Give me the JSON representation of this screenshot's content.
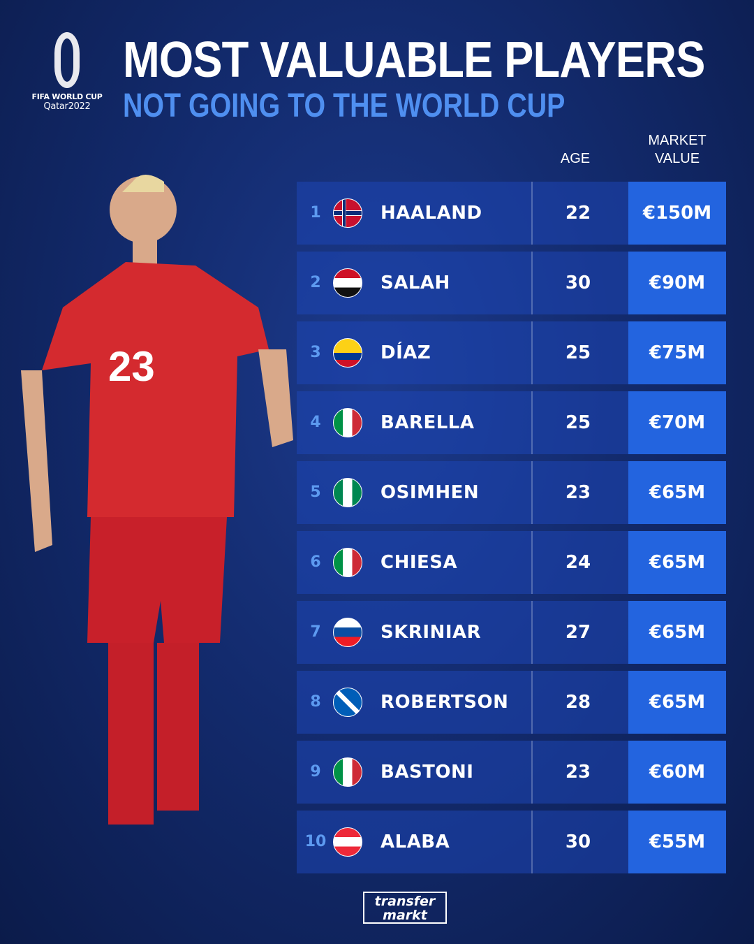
{
  "logo": {
    "line1": "FIFA WORLD CUP",
    "line2": "Qatar2022"
  },
  "header": {
    "title": "MOST VALUABLE PLAYERS",
    "subtitle": "NOT GOING TO THE WORLD CUP"
  },
  "columns": {
    "age": "AGE",
    "market_value_1": "MARKET",
    "market_value_2": "VALUE"
  },
  "rows": [
    {
      "rank": "1",
      "name": "HAALAND",
      "country": "Norway",
      "age": "22",
      "value": "€150M"
    },
    {
      "rank": "2",
      "name": "SALAH",
      "country": "Egypt",
      "age": "30",
      "value": "€90M"
    },
    {
      "rank": "3",
      "name": "DÍAZ",
      "country": "Colombia",
      "age": "25",
      "value": "€75M"
    },
    {
      "rank": "4",
      "name": "BARELLA",
      "country": "Italy",
      "age": "25",
      "value": "€70M"
    },
    {
      "rank": "5",
      "name": "OSIMHEN",
      "country": "Nigeria",
      "age": "23",
      "value": "€65M"
    },
    {
      "rank": "6",
      "name": "CHIESA",
      "country": "Italy",
      "age": "24",
      "value": "€65M"
    },
    {
      "rank": "7",
      "name": "SKRINIAR",
      "country": "Slovakia",
      "age": "27",
      "value": "€65M"
    },
    {
      "rank": "8",
      "name": "ROBERTSON",
      "country": "Scotland",
      "age": "28",
      "value": "€65M"
    },
    {
      "rank": "9",
      "name": "BASTONI",
      "country": "Italy",
      "age": "23",
      "value": "€60M"
    },
    {
      "rank": "10",
      "name": "ALABA",
      "country": "Austria",
      "age": "30",
      "value": "€55M"
    }
  ],
  "footer": {
    "brand_line1": "transfer",
    "brand_line2": "markt"
  },
  "colors": {
    "background": "#132b6e",
    "row": "#1e46b4",
    "value_box": "#2364df",
    "subtitle": "#4f8ff0",
    "rank": "#5d9af0"
  }
}
